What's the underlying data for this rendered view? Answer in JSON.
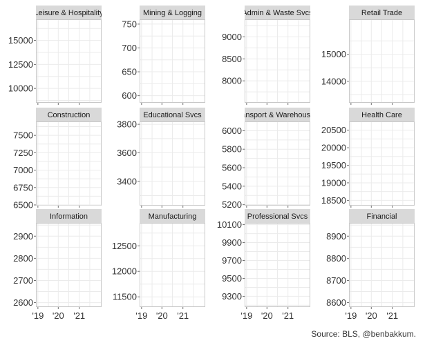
{
  "chart_data": {
    "type": "line",
    "layout": "facet-grid",
    "columns": 4,
    "x_ticks": [
      "'19",
      "'20",
      "'21"
    ],
    "source": "Source: BLS, @benbakkum.",
    "panels": [
      {
        "title": "Leisure & Hospitality",
        "y_ticks": [
          10000,
          12500,
          15000
        ],
        "ylim": [
          8500,
          17200
        ],
        "series": []
      },
      {
        "title": "Mining & Logging",
        "y_ticks": [
          600,
          650,
          700,
          750
        ],
        "ylim": [
          585,
          760
        ],
        "series": []
      },
      {
        "title": "Admin & Waste Svcs",
        "y_ticks": [
          8000,
          8500,
          9000
        ],
        "ylim": [
          7500,
          9400
        ],
        "series": []
      },
      {
        "title": "Retail Trade",
        "y_ticks": [
          14000,
          15000
        ],
        "ylim": [
          13200,
          16300
        ],
        "series": []
      },
      {
        "title": "Construction",
        "y_ticks": [
          6500,
          6750,
          7000,
          7250,
          7500
        ],
        "ylim": [
          6490,
          7700
        ],
        "series": []
      },
      {
        "title": "Educational Svcs",
        "y_ticks": [
          3400,
          3600,
          3800
        ],
        "ylim": [
          3230,
          3820
        ],
        "series": []
      },
      {
        "title": "Transport & Warehousing",
        "y_ticks": [
          5200,
          5400,
          5600,
          5800,
          6000
        ],
        "ylim": [
          5190,
          6100
        ],
        "series": []
      },
      {
        "title": "Health Care",
        "y_ticks": [
          18500,
          19000,
          19500,
          20000,
          20500
        ],
        "ylim": [
          18350,
          20750
        ],
        "series": []
      },
      {
        "title": "Information",
        "y_ticks": [
          2600,
          2700,
          2800,
          2900
        ],
        "ylim": [
          2580,
          2960
        ],
        "series": []
      },
      {
        "title": "Manufacturing",
        "y_ticks": [
          11500,
          12000,
          12500
        ],
        "ylim": [
          11300,
          12950
        ],
        "series": []
      },
      {
        "title": "Professional Svcs",
        "y_ticks": [
          9300,
          9500,
          9700,
          9900,
          10100
        ],
        "ylim": [
          9180,
          10120
        ],
        "series": []
      },
      {
        "title": "Financial",
        "y_ticks": [
          8600,
          8700,
          8800,
          8900
        ],
        "ylim": [
          8580,
          8960
        ],
        "series": []
      }
    ]
  }
}
